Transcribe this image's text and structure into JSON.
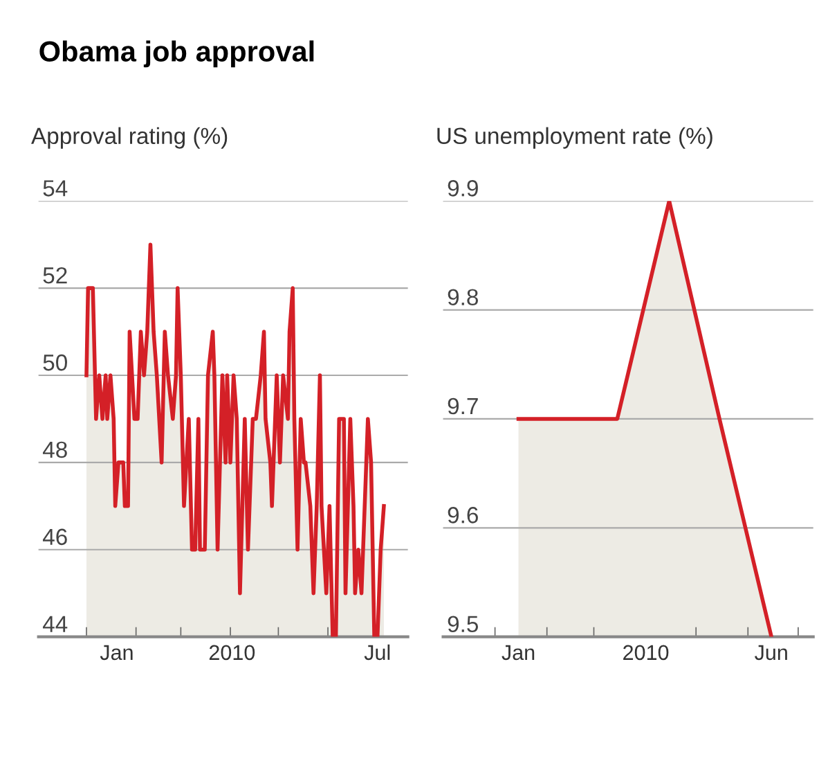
{
  "chart_data": [
    {
      "type": "area",
      "title": "Obama job approval",
      "ylabel": "Approval rating (%)",
      "series": [
        {
          "color": "#d42027",
          "x": [
            "2010-01-01",
            "2010-01-02",
            "2010-01-05",
            "2010-01-07",
            "2010-01-09",
            "2010-01-11",
            "2010-01-13",
            "2010-01-14",
            "2010-01-16",
            "2010-01-18",
            "2010-01-19",
            "2010-01-21",
            "2010-01-24",
            "2010-01-25",
            "2010-01-27",
            "2010-01-28",
            "2010-01-31",
            "2010-02-02",
            "2010-02-04",
            "2010-02-06",
            "2010-02-08",
            "2010-02-10",
            "2010-02-12",
            "2010-02-14",
            "2010-02-17",
            "2010-02-19",
            "2010-02-21",
            "2010-02-24",
            "2010-02-26",
            "2010-02-27",
            "2010-03-01",
            "2010-03-03",
            "2010-03-06",
            "2010-03-08",
            "2010-03-10",
            "2010-03-12",
            "2010-03-13",
            "2010-03-16",
            "2010-03-18",
            "2010-03-21",
            "2010-03-22",
            "2010-03-24",
            "2010-03-27",
            "2010-03-29",
            "2010-03-30",
            "2010-04-01",
            "2010-04-03",
            "2010-04-05",
            "2010-04-07",
            "2010-04-10",
            "2010-04-12",
            "2010-04-15",
            "2010-04-17",
            "2010-04-20",
            "2010-04-22",
            "2010-04-23",
            "2010-04-26",
            "2010-04-27",
            "2010-04-30",
            "2010-05-02",
            "2010-05-04",
            "2010-05-07",
            "2010-05-08",
            "2010-05-10",
            "2010-05-11",
            "2010-05-13",
            "2010-05-15",
            "2010-05-17",
            "2010-05-18",
            "2010-05-21",
            "2010-05-23",
            "2010-05-25",
            "2010-05-27",
            "2010-05-28",
            "2010-05-31",
            "2010-06-02",
            "2010-06-04",
            "2010-06-06",
            "2010-06-08",
            "2010-06-11",
            "2010-06-12",
            "2010-06-15",
            "2010-06-17",
            "2010-06-18",
            "2010-06-20",
            "2010-06-22",
            "2010-06-23",
            "2010-06-26",
            "2010-06-28",
            "2010-06-30",
            "2010-07-02",
            "2010-07-04",
            "2010-07-06"
          ],
          "values": [
            50,
            52,
            52,
            49,
            50,
            49,
            50,
            49,
            50,
            49,
            47,
            48,
            48,
            47,
            47,
            51,
            49,
            49,
            51,
            50,
            51,
            53,
            51,
            50,
            48,
            51,
            50,
            49,
            50,
            52,
            50,
            47,
            49,
            46,
            46,
            49,
            46,
            46,
            50,
            51,
            50,
            46,
            50,
            48,
            50,
            48,
            50,
            49,
            45,
            49,
            46,
            49,
            49,
            50,
            51,
            49,
            48,
            47,
            50,
            48,
            50,
            49,
            51,
            52,
            49,
            46,
            49,
            48,
            48,
            47,
            45,
            47,
            50,
            47,
            45,
            47,
            44,
            44,
            49,
            49,
            45,
            49,
            47,
            45,
            46,
            45,
            46,
            49,
            48,
            44,
            44,
            46,
            47
          ]
        }
      ],
      "xlim": [
        "2009-12-02",
        "2010-07-21"
      ],
      "xticks": [
        {
          "value": "2010-01-01",
          "label": null
        },
        {
          "value": "2010-01-20",
          "label": "Jan"
        },
        {
          "value": "2010-02-01",
          "label": null
        },
        {
          "value": "2010-03-01",
          "label": null
        },
        {
          "value": "2010-04-01",
          "label": null
        },
        {
          "value": "2010-04-02",
          "label": "2010"
        },
        {
          "value": "2010-05-01",
          "label": null
        },
        {
          "value": "2010-06-01",
          "label": null
        },
        {
          "value": "2010-07-02",
          "label": "Jul"
        },
        {
          "value": "2010-07-01",
          "label": null
        }
      ],
      "ylim": [
        44,
        54
      ],
      "yticks": [
        44,
        46,
        48,
        50,
        52,
        54
      ],
      "grid": "y"
    },
    {
      "type": "area",
      "ylabel": "US unemployment rate (%)",
      "series": [
        {
          "color": "#d42027",
          "x": [
            "2010-01-15",
            "2010-02-15",
            "2010-03-15",
            "2010-04-15",
            "2010-05-15",
            "2010-06-15"
          ],
          "values": [
            9.7,
            9.7,
            9.7,
            9.9,
            9.7,
            9.5
          ]
        }
      ],
      "xlim": [
        "2009-12-01",
        "2010-07-10"
      ],
      "xticks": [
        {
          "value": "2010-01-01",
          "label": null
        },
        {
          "value": "2010-01-15",
          "label": "Jan"
        },
        {
          "value": "2010-02-01",
          "label": null
        },
        {
          "value": "2010-03-01",
          "label": null
        },
        {
          "value": "2010-04-01",
          "label": "2010"
        },
        {
          "value": "2010-05-01",
          "label": null
        },
        {
          "value": "2010-06-01",
          "label": null
        },
        {
          "value": "2010-06-15",
          "label": "Jun"
        },
        {
          "value": "2010-07-01",
          "label": null
        }
      ],
      "ylim": [
        9.5,
        9.9
      ],
      "yticks": [
        9.5,
        9.6,
        9.7,
        9.8,
        9.9
      ],
      "grid": "y"
    }
  ]
}
